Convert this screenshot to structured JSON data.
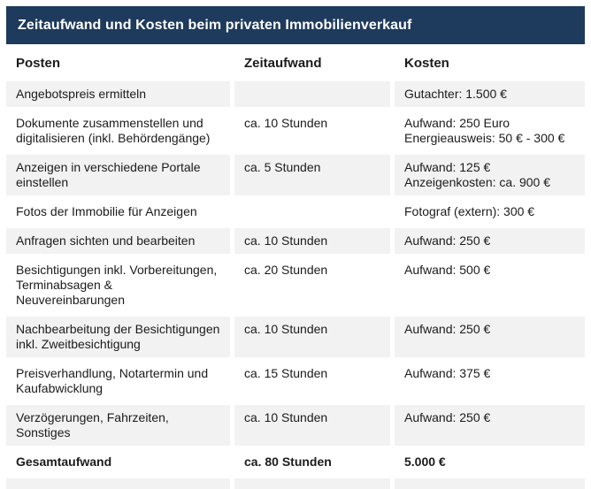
{
  "title_bar": {
    "title": "Zeitaufwand und Kosten beim privaten Immobilienverkauf"
  },
  "colors": {
    "title_bar_bg": "#1e3a5c",
    "title_text": "#ffffff",
    "row_gray_bg": "#f2f2f2",
    "row_white_bg": "#ffffff",
    "body_text": "#1b1b1b"
  },
  "chart_data": {
    "type": "table",
    "title": "Zeitaufwand und Kosten beim privaten Immobilienverkauf",
    "columns": [
      "Posten",
      "Zeitaufwand",
      "Kosten"
    ],
    "rows": [
      {
        "posten": [
          "Angebotspreis ermitteln"
        ],
        "zeitaufwand": "",
        "kosten": [
          "Gutachter: 1.500 €"
        ],
        "bold": false
      },
      {
        "posten": [
          "Dokumente zusammenstellen und",
          "digitalisieren (inkl. Behördengänge)"
        ],
        "zeitaufwand": "ca. 10 Stunden",
        "kosten": [
          "Aufwand: 250 Euro",
          "Energieausweis: 50 € - 300 €"
        ],
        "bold": false
      },
      {
        "posten": [
          "Anzeigen in verschiedene Portale",
          "einstellen"
        ],
        "zeitaufwand": "ca. 5 Stunden",
        "kosten": [
          "Aufwand: 125 €",
          "Anzeigenkosten: ca. 900 €"
        ],
        "bold": false
      },
      {
        "posten": [
          "Fotos der Immobilie für  Anzeigen"
        ],
        "zeitaufwand": "",
        "kosten": [
          "Fotograf (extern): 300 €"
        ],
        "bold": false
      },
      {
        "posten": [
          "Anfragen sichten und bearbeiten"
        ],
        "zeitaufwand": "ca. 10 Stunden",
        "kosten": [
          "Aufwand: 250 €"
        ],
        "bold": false
      },
      {
        "posten": [
          "Besichtigungen inkl. Vorbereitungen,",
          "Terminabsagen & Neuvereinbarungen"
        ],
        "zeitaufwand": "ca. 20 Stunden",
        "kosten": [
          "Aufwand: 500 €"
        ],
        "bold": false
      },
      {
        "posten": [
          "Nachbearbeitung der Besichtigungen",
          "inkl. Zweitbesichtigung"
        ],
        "zeitaufwand": "ca. 10 Stunden",
        "kosten": [
          "Aufwand: 250 €"
        ],
        "bold": false
      },
      {
        "posten": [
          "Preisverhandlung, Notartermin und",
          "Kaufabwicklung"
        ],
        "zeitaufwand": "ca. 15 Stunden",
        "kosten": [
          "Aufwand: 375 €"
        ],
        "bold": false
      },
      {
        "posten": [
          "Verzögerungen, Fahrzeiten, Sonstiges"
        ],
        "zeitaufwand": "ca. 10 Stunden",
        "kosten": [
          "Aufwand: 250 €"
        ],
        "bold": false
      },
      {
        "posten": [
          "Gesamtaufwand"
        ],
        "zeitaufwand": "ca. 80 Stunden",
        "kosten": [
          "5.000 €"
        ],
        "bold": true
      }
    ]
  }
}
